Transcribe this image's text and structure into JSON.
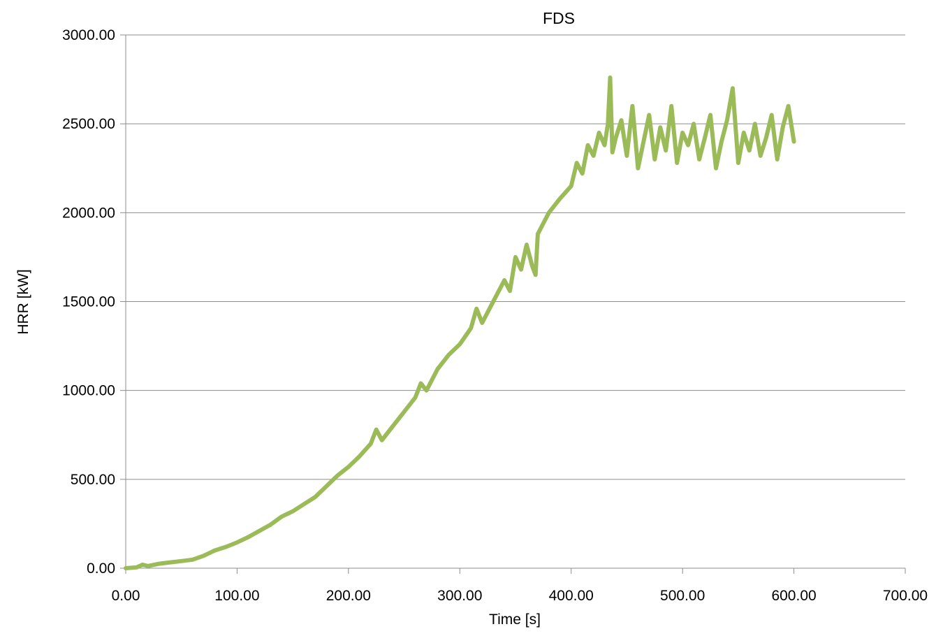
{
  "chart_data": {
    "type": "line",
    "title": "FDS",
    "xlabel": "Time [s]",
    "ylabel": "HRR [kW]",
    "xlim": [
      0,
      700
    ],
    "ylim": [
      0,
      3000
    ],
    "xticks": [
      "0.00",
      "100.00",
      "200.00",
      "300.00",
      "400.00",
      "500.00",
      "600.00",
      "700.00"
    ],
    "yticks": [
      "0.00",
      "500.00",
      "1000.00",
      "1500.00",
      "2000.00",
      "2500.00",
      "3000.00"
    ],
    "grid": "horizontal",
    "legend": "none",
    "series_color": "#9bbb59",
    "series": [
      {
        "x": [
          0,
          10,
          15,
          20,
          30,
          40,
          50,
          60,
          70,
          80,
          90,
          100,
          110,
          120,
          130,
          140,
          150,
          160,
          170,
          180,
          190,
          200,
          210,
          220,
          225,
          230,
          240,
          250,
          260,
          265,
          270,
          280,
          290,
          300,
          310,
          315,
          320,
          330,
          340,
          345,
          350,
          355,
          360,
          365,
          368,
          370,
          380,
          390,
          400,
          405,
          410,
          415,
          420,
          425,
          430,
          433,
          435,
          437,
          440,
          445,
          450,
          455,
          460,
          465,
          470,
          475,
          480,
          485,
          490,
          495,
          500,
          505,
          510,
          515,
          520,
          525,
          530,
          535,
          540,
          545,
          550,
          555,
          560,
          565,
          570,
          575,
          580,
          585,
          590,
          595,
          600
        ],
        "y": [
          0,
          5,
          20,
          12,
          25,
          33,
          40,
          48,
          70,
          100,
          120,
          145,
          175,
          210,
          245,
          290,
          320,
          360,
          400,
          460,
          520,
          570,
          630,
          700,
          780,
          720,
          800,
          880,
          960,
          1040,
          1000,
          1120,
          1200,
          1260,
          1350,
          1460,
          1380,
          1500,
          1620,
          1560,
          1750,
          1680,
          1820,
          1700,
          1650,
          1880,
          2000,
          2080,
          2150,
          2280,
          2220,
          2380,
          2320,
          2450,
          2380,
          2500,
          2760,
          2340,
          2420,
          2520,
          2320,
          2600,
          2250,
          2400,
          2550,
          2300,
          2480,
          2350,
          2600,
          2280,
          2450,
          2380,
          2500,
          2300,
          2420,
          2550,
          2250,
          2400,
          2520,
          2700,
          2280,
          2450,
          2350,
          2500,
          2320,
          2420,
          2550,
          2300,
          2480,
          2600,
          2400
        ]
      }
    ]
  }
}
